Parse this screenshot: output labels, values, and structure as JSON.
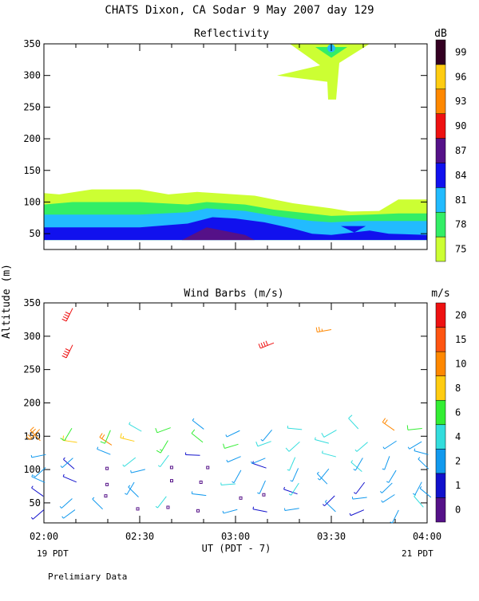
{
  "title": "CHATS Dixon, CA  Sodar   9 May 2007  day 129",
  "footer_note": "Prelimiary Data",
  "chart_data": [
    {
      "type": "contour",
      "title": "Reflectivity",
      "colorbar_unit": "dB",
      "ylabel": "Altitude (m)",
      "xlabel": "UT  (PDT - 7)",
      "x_ticks": [
        "02:00",
        "02:30",
        "03:00",
        "03:30",
        "04:00"
      ],
      "x_range_hours": [
        0,
        2
      ],
      "ylim": [
        25,
        350
      ],
      "y_ticks": [
        50,
        100,
        150,
        200,
        250,
        300,
        350
      ],
      "levels": [
        75,
        78,
        81,
        84,
        87,
        90,
        93,
        96,
        99
      ],
      "level_colors": [
        "#ccff33",
        "#33ee66",
        "#22bbff",
        "#1111ee",
        "#551188",
        "#ee1111",
        "#ff8800",
        "#ffcc11",
        "#330022"
      ],
      "bands": [
        {
          "level": 75,
          "top": [
            [
              0,
              114
            ],
            [
              0.08,
              112
            ],
            [
              0.25,
              120
            ],
            [
              0.5,
              120
            ],
            [
              0.65,
              112
            ],
            [
              0.8,
              116
            ],
            [
              1.1,
              110
            ],
            [
              1.3,
              98
            ],
            [
              1.5,
              90
            ],
            [
              1.6,
              85
            ],
            [
              1.75,
              86
            ],
            [
              1.85,
              104
            ],
            [
              2.0,
              104
            ]
          ]
        },
        {
          "level": 78,
          "top": [
            [
              0,
              96
            ],
            [
              0.15,
              100
            ],
            [
              0.5,
              100
            ],
            [
              0.75,
              96
            ],
            [
              0.85,
              100
            ],
            [
              1.05,
              96
            ],
            [
              1.2,
              88
            ],
            [
              1.5,
              78
            ],
            [
              1.7,
              80
            ],
            [
              1.85,
              82
            ],
            [
              2.0,
              82
            ]
          ]
        },
        {
          "level": 81,
          "top": [
            [
              0,
              80
            ],
            [
              0.15,
              80
            ],
            [
              0.5,
              80
            ],
            [
              0.75,
              84
            ],
            [
              0.85,
              90
            ],
            [
              1.05,
              86
            ],
            [
              1.2,
              78
            ],
            [
              1.4,
              70
            ],
            [
              1.5,
              68
            ],
            [
              1.65,
              70
            ],
            [
              2.0,
              70
            ]
          ]
        },
        {
          "level": 84,
          "top": [
            [
              0,
              60
            ],
            [
              0.2,
              60
            ],
            [
              0.5,
              60
            ],
            [
              0.75,
              66
            ],
            [
              0.88,
              76
            ],
            [
              1.0,
              74
            ],
            [
              1.15,
              68
            ],
            [
              1.3,
              58
            ],
            [
              1.4,
              50
            ],
            [
              1.5,
              48
            ],
            [
              1.7,
              55
            ],
            [
              1.8,
              50
            ],
            [
              2.0,
              48
            ]
          ]
        },
        {
          "level": 87,
          "top": [
            [
              0.72,
              40
            ],
            [
              0.85,
              60
            ],
            [
              1.05,
              48
            ],
            [
              1.1,
              40
            ]
          ]
        }
      ],
      "upper_feature": {
        "level": 75,
        "center_time": 1.5,
        "bottom": 260,
        "top": 350
      }
    },
    {
      "type": "wind_barbs",
      "title": "Wind Barbs (m/s)",
      "colorbar_unit": "m/s",
      "ylabel": "Altitude (m)",
      "xlabel": "UT  (PDT - 7)",
      "x_ticks": [
        "02:00",
        "02:30",
        "03:00",
        "03:30",
        "04:00"
      ],
      "start_label": "19 PDT",
      "end_label": "21 PDT",
      "ylim": [
        20,
        350
      ],
      "y_ticks": [
        50,
        100,
        150,
        200,
        250,
        300,
        350
      ],
      "speed_levels": [
        0,
        1,
        2,
        4,
        6,
        8,
        10,
        15,
        20
      ],
      "speed_colors": [
        "#551188",
        "#1111cc",
        "#1199ee",
        "#33dddd",
        "#33ee33",
        "#ffcc11",
        "#ff8800",
        "#ff5511",
        "#ee1111"
      ],
      "altitudes": [
        40,
        60,
        80,
        100,
        120,
        140,
        160
      ],
      "times": [
        0.0,
        0.167,
        0.333,
        0.5,
        0.667,
        0.833,
        1.0,
        1.167,
        1.333,
        1.5,
        1.667,
        1.833,
        2.0
      ],
      "calm_band_top": 100,
      "calm_window_hours": [
        0.2,
        1.2
      ],
      "upper_barbs": [
        {
          "t": 0.15,
          "alt": 342,
          "speed": 20
        },
        {
          "t": 0.15,
          "alt": 287,
          "speed": 20
        },
        {
          "t": 1.2,
          "alt": 290,
          "speed": 20
        },
        {
          "t": 1.5,
          "alt": 310,
          "speed": 13
        }
      ]
    }
  ]
}
